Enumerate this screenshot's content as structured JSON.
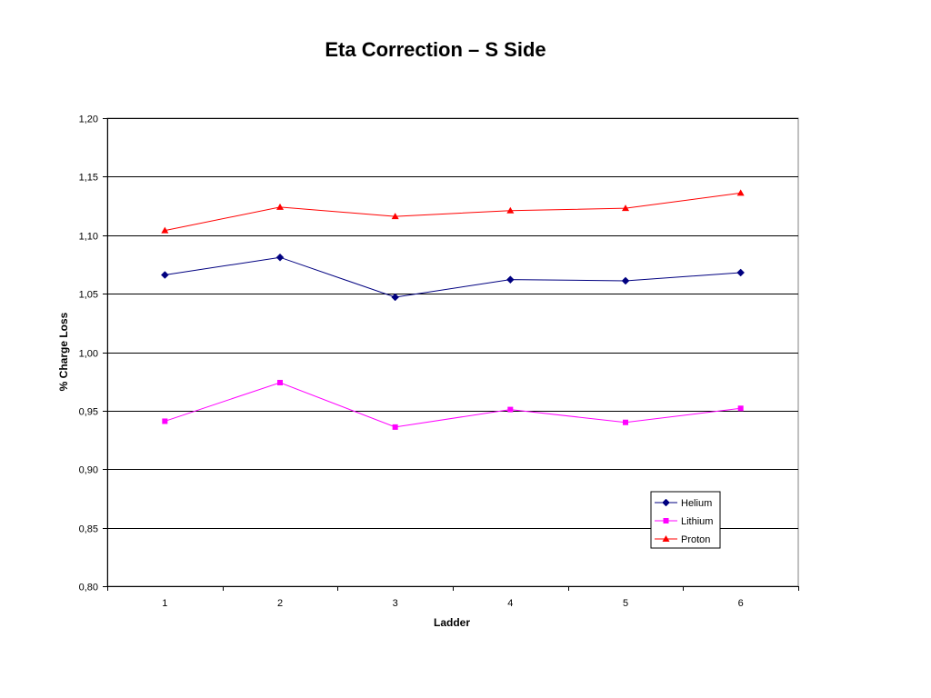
{
  "chart_data": {
    "type": "line",
    "title": "Eta Correction – S Side",
    "xlabel": "Ladder",
    "ylabel": "% Charge Loss",
    "categories": [
      "1",
      "2",
      "3",
      "4",
      "5",
      "6"
    ],
    "ylim": [
      0.8,
      1.2
    ],
    "y_ticks": [
      0.8,
      0.85,
      0.9,
      0.95,
      1.0,
      1.05,
      1.1,
      1.15,
      1.2
    ],
    "y_tick_labels": [
      "0,80",
      "0,85",
      "0,90",
      "0,95",
      "1,00",
      "1,05",
      "1,10",
      "1,15",
      "1,20"
    ],
    "grid": true,
    "legend_position": "bottom-right",
    "series": [
      {
        "name": "Helium",
        "color": "#000080",
        "marker": "diamond",
        "values": [
          1.066,
          1.081,
          1.047,
          1.062,
          1.061,
          1.068
        ]
      },
      {
        "name": "Lithium",
        "color": "#FF00FF",
        "marker": "square",
        "values": [
          0.941,
          0.974,
          0.936,
          0.951,
          0.94,
          0.952
        ]
      },
      {
        "name": "Proton",
        "color": "#FF0000",
        "marker": "triangle",
        "values": [
          1.104,
          1.124,
          1.116,
          1.121,
          1.123,
          1.136
        ]
      }
    ]
  }
}
